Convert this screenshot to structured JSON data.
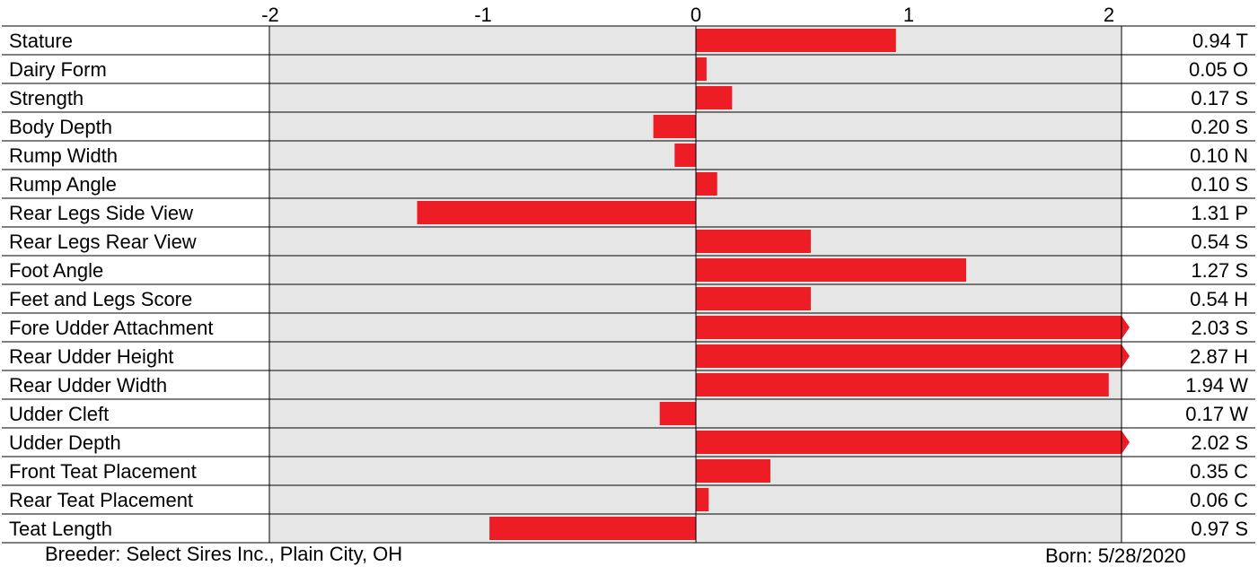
{
  "chart_data": {
    "type": "bar",
    "orientation": "horizontal",
    "xlim": [
      -2,
      2
    ],
    "x_ticks": [
      "-2",
      "-1",
      "0",
      "1",
      "2"
    ],
    "colors": {
      "bar": "#ee1c25",
      "plot_background": "#e6e6e6",
      "grid": "#000000"
    },
    "rows": [
      {
        "label": "Stature",
        "value": 0.94,
        "right_label": "0.94 T"
      },
      {
        "label": "Dairy Form",
        "value": 0.05,
        "right_label": "0.05 O"
      },
      {
        "label": "Strength",
        "value": 0.17,
        "right_label": "0.17 S"
      },
      {
        "label": "Body Depth",
        "value": -0.2,
        "right_label": "0.20 S"
      },
      {
        "label": "Rump Width",
        "value": -0.1,
        "right_label": "0.10 N"
      },
      {
        "label": "Rump Angle",
        "value": 0.1,
        "right_label": "0.10 S"
      },
      {
        "label": "Rear Legs Side View",
        "value": -1.31,
        "right_label": "1.31 P"
      },
      {
        "label": "Rear Legs Rear View",
        "value": 0.54,
        "right_label": "0.54 S"
      },
      {
        "label": "Foot Angle",
        "value": 1.27,
        "right_label": "1.27 S"
      },
      {
        "label": "Feet and Legs Score",
        "value": 0.54,
        "right_label": "0.54 H"
      },
      {
        "label": "Fore Udder Attachment",
        "value": 2.03,
        "right_label": "2.03 S"
      },
      {
        "label": "Rear Udder Height",
        "value": 2.87,
        "right_label": "2.87 H"
      },
      {
        "label": "Rear Udder Width",
        "value": 1.94,
        "right_label": "1.94 W"
      },
      {
        "label": "Udder Cleft",
        "value": -0.17,
        "right_label": "0.17 W"
      },
      {
        "label": "Udder Depth",
        "value": 2.02,
        "right_label": "2.02 S"
      },
      {
        "label": "Front Teat Placement",
        "value": 0.35,
        "right_label": "0.35 C"
      },
      {
        "label": "Rear Teat Placement",
        "value": 0.06,
        "right_label": "0.06 C"
      },
      {
        "label": "Teat Length",
        "value": -0.97,
        "right_label": "0.97 S"
      }
    ]
  },
  "footer": {
    "breeder": "Breeder:  Select Sires Inc., Plain City, OH",
    "born": "Born:  5/28/2020"
  }
}
